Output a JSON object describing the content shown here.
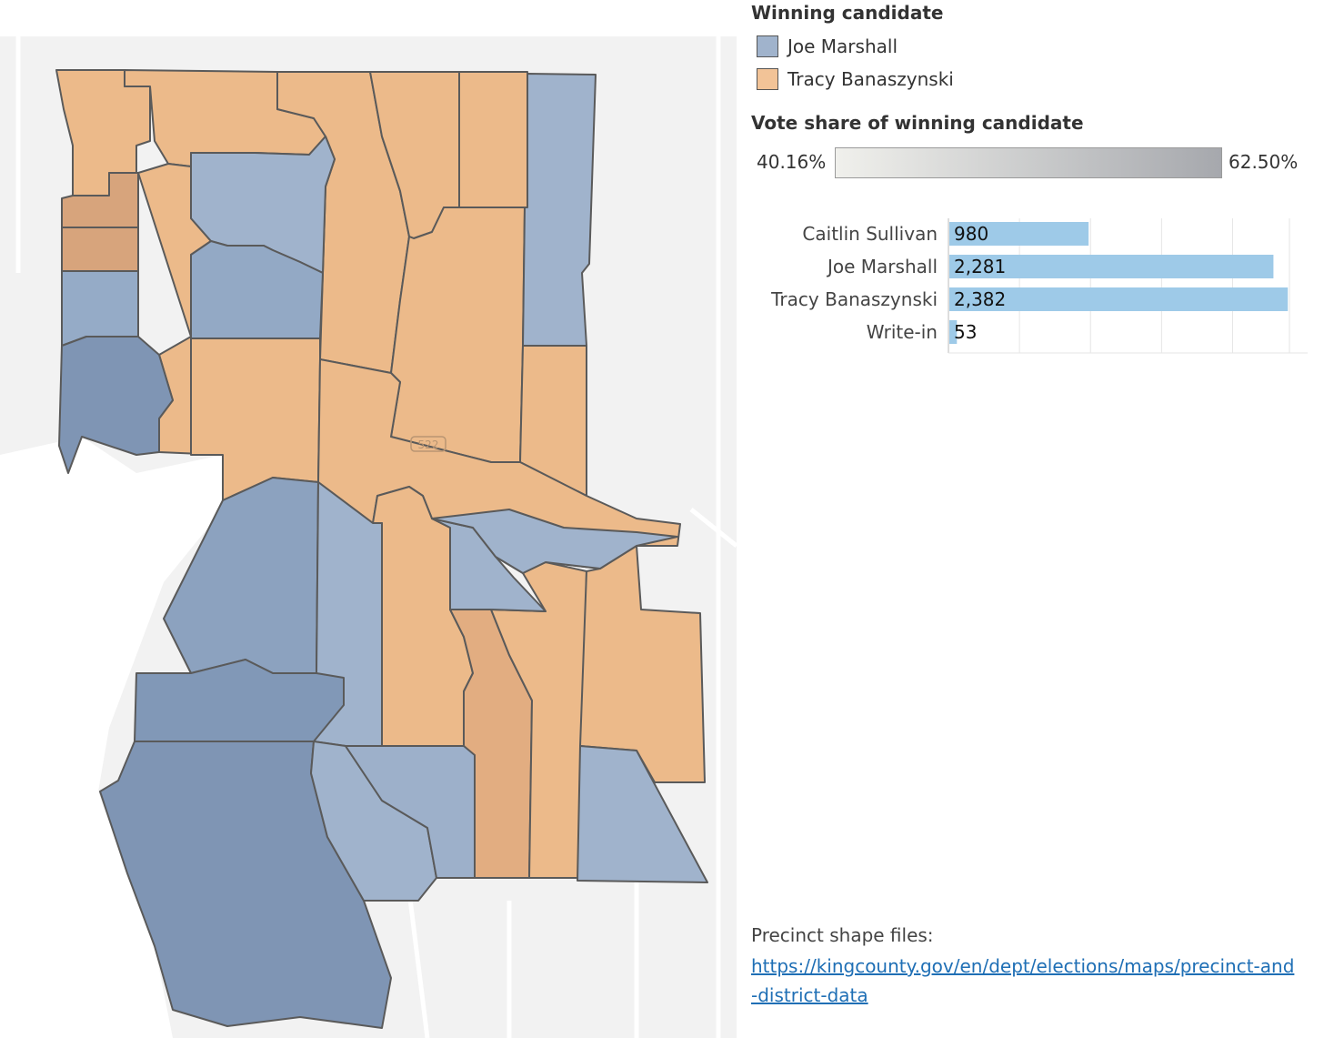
{
  "legend": {
    "winning_title": "Winning candidate",
    "candidates": [
      {
        "name": "Joe Marshall",
        "color": "#a0b3cc"
      },
      {
        "name": "Tracy Banaszynski",
        "color": "#f2c397"
      }
    ],
    "share_title": "Vote share of winning candidate",
    "share_min": "40.16%",
    "share_max": "62.50%"
  },
  "map": {
    "road_label": "522",
    "colors": {
      "joe_marshall": "#8fa5c1",
      "tracy_banaszynski": "#ecba8a"
    }
  },
  "chart_data": {
    "type": "bar",
    "orientation": "horizontal",
    "categories": [
      "Caitlin Sullivan",
      "Joe Marshall",
      "Tracy Banaszynski",
      "Write-in"
    ],
    "values": [
      980,
      2281,
      2382,
      53
    ],
    "value_labels": [
      "980",
      "2,281",
      "2,382",
      "53"
    ],
    "bar_color": "#9ecae8",
    "xlim": [
      0,
      2400
    ],
    "grid": true
  },
  "source": {
    "label": "Precinct shape files:",
    "link": "https://kingcounty.gov/en/dept/elections/maps/precinct-and-district-data"
  }
}
